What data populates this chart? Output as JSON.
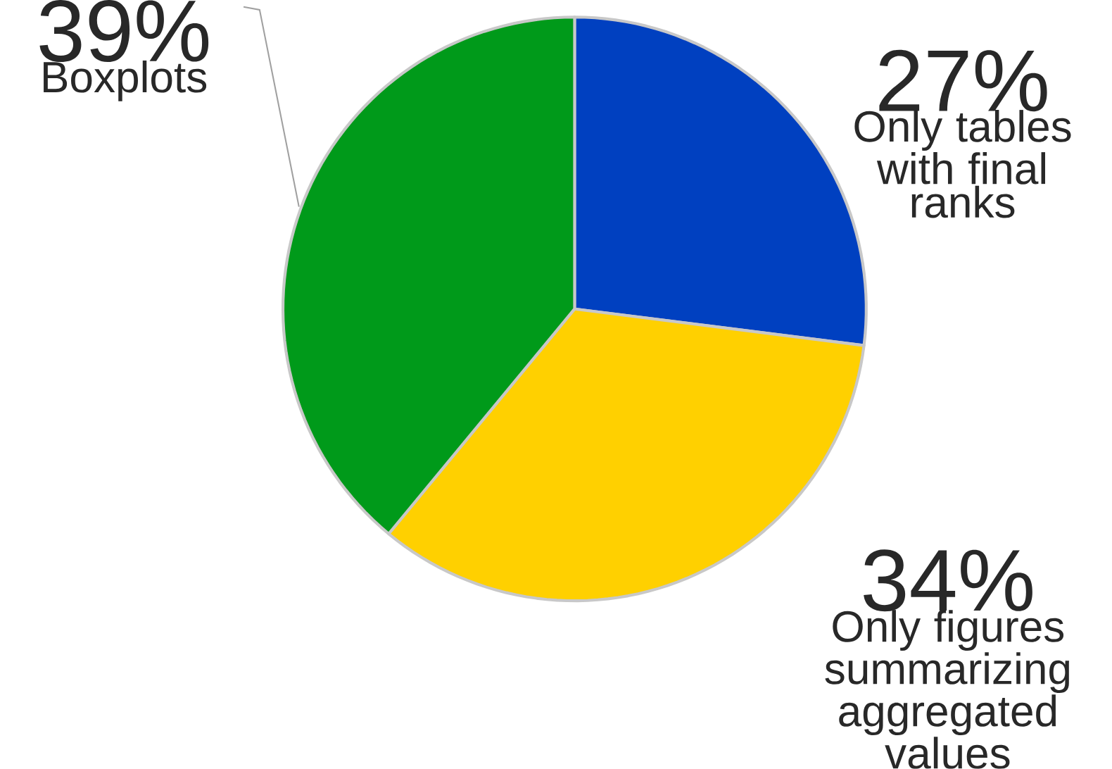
{
  "chart_data": {
    "type": "pie",
    "categories": [
      "Only tables with final ranks",
      "Only figures summarizing aggregated values",
      "Boxplots"
    ],
    "values": [
      27,
      34,
      39
    ],
    "value_labels": [
      "27%",
      "34%",
      "39%"
    ],
    "colors": [
      "#0040c0",
      "#ffd000",
      "#009a1a"
    ]
  }
}
